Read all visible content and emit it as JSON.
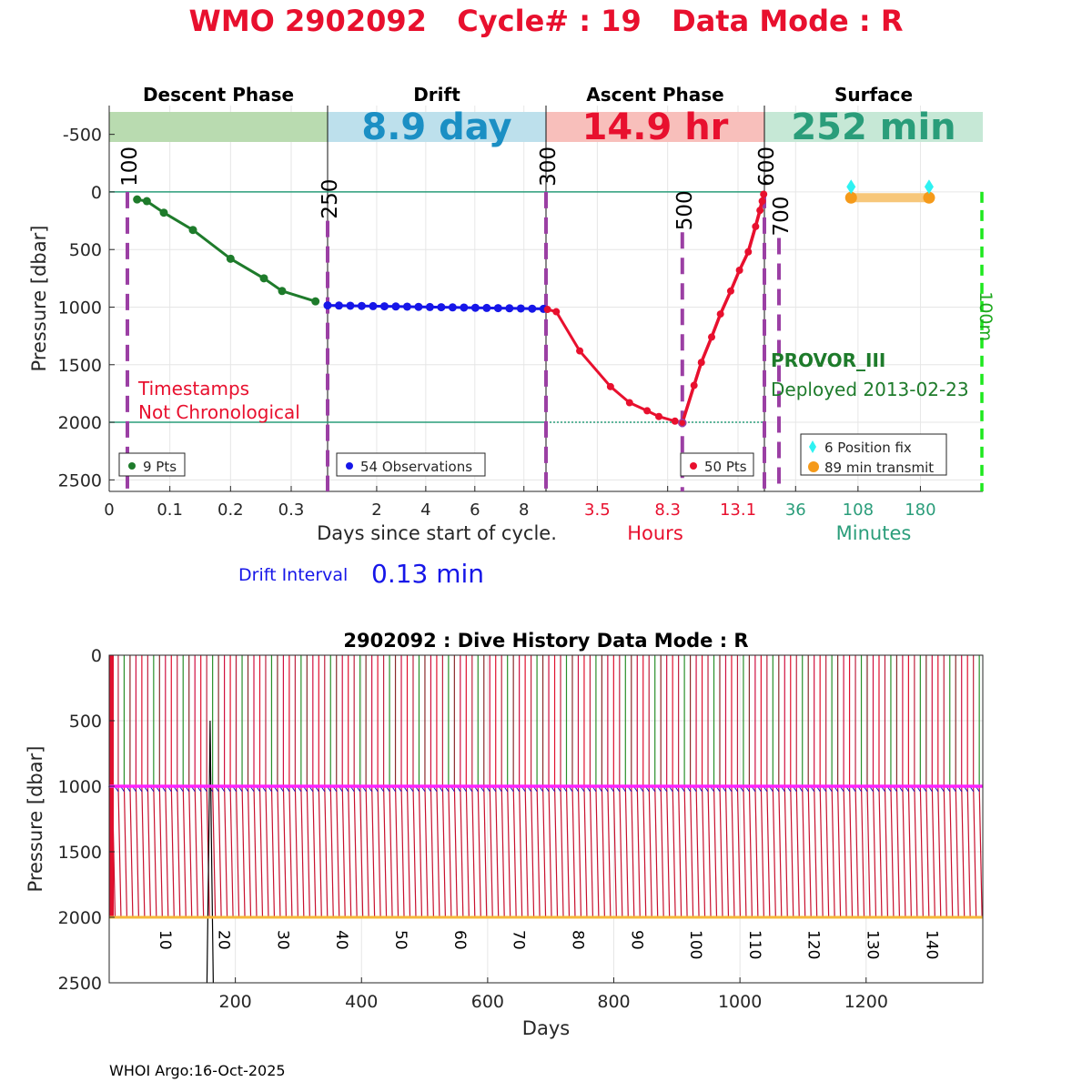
{
  "header": {
    "title": "WMO 2902092   Cycle# : 19   Data Mode : R"
  },
  "colors": {
    "title_red": "#e8102e",
    "descent": "#1e7b2b",
    "drift": "#1616e8",
    "ascent": "#e8102e",
    "surface_teal": "#2a9d7a",
    "marker_purple": "#9b3fa4",
    "orange": "#f59a1a",
    "cyan": "#2ef2f2"
  },
  "chart_data": [
    {
      "type": "line",
      "name": "cycle-profile",
      "phases": [
        {
          "title": "Descent Phase",
          "band_text": "",
          "band_color": "#b9dbb0"
        },
        {
          "title": "Drift",
          "band_text": "8.9 day",
          "band_color": "#bde0ec",
          "text_color": "#1b8fc4"
        },
        {
          "title": "Ascent Phase",
          "band_text": "14.9 hr",
          "band_color": "#f8bfbb",
          "text_color": "#e8102e"
        },
        {
          "title": "Surface",
          "band_text": "252 min",
          "band_color": "#c6e8d6",
          "text_color": "#2a9d7a"
        }
      ],
      "ylabel": "Pressure [dbar]",
      "yticks": [
        "-500",
        "0",
        "500",
        "1000",
        "1500",
        "2000",
        "2500"
      ],
      "ylim": [
        -750,
        2600
      ],
      "y_reversed": true,
      "xlabels": {
        "descent_drift": "Days since start of cycle.",
        "ascent": "Hours",
        "surface": "Minutes"
      },
      "xticks": {
        "descent": [
          "0",
          "0.1",
          "0.2",
          "0.3"
        ],
        "drift": [
          "2",
          "4",
          "6",
          "8"
        ],
        "ascent": [
          "3.5",
          "8.3",
          "13.1"
        ],
        "surface": [
          "36",
          "108",
          "180"
        ]
      },
      "descent": {
        "xlim": [
          0,
          0.36
        ],
        "points": [
          [
            0.046,
            65
          ],
          [
            0.062,
            80
          ],
          [
            0.09,
            180
          ],
          [
            0.138,
            330
          ],
          [
            0.2,
            580
          ],
          [
            0.255,
            750
          ],
          [
            0.285,
            860
          ],
          [
            0.34,
            950
          ]
        ]
      },
      "drift": {
        "xlim": [
          0,
          8.9
        ],
        "start": 0,
        "end": 8.8,
        "count": 20,
        "pressure_start": 985,
        "pressure_end": 1015
      },
      "ascent": {
        "xlim": [
          0,
          14.9
        ],
        "descent_leg": [
          [
            0.1,
            1020
          ],
          [
            0.7,
            1040
          ],
          [
            2.3,
            1380
          ],
          [
            4.4,
            1690
          ],
          [
            5.7,
            1830
          ],
          [
            6.9,
            1900
          ],
          [
            7.7,
            1950
          ],
          [
            8.8,
            1990
          ],
          [
            9.3,
            2005
          ]
        ],
        "ascent_leg": [
          [
            9.3,
            2005
          ],
          [
            10.1,
            1680
          ],
          [
            10.6,
            1480
          ],
          [
            11.3,
            1260
          ],
          [
            11.9,
            1060
          ],
          [
            12.6,
            860
          ],
          [
            13.2,
            680
          ],
          [
            13.8,
            520
          ],
          [
            14.3,
            300
          ],
          [
            14.6,
            160
          ],
          [
            14.75,
            80
          ],
          [
            14.85,
            20
          ]
        ]
      },
      "surface": {
        "xlim": [
          0,
          252
        ],
        "position_fix_minutes": [
          100,
          190
        ],
        "transmit_start": 100,
        "transmit_end": 190,
        "green_line_label": "100m"
      },
      "reference_lines": [
        0,
        2000
      ],
      "markers": [
        {
          "label": "100",
          "panel": "descent",
          "x": 0.03,
          "top": 0
        },
        {
          "label": "250",
          "panel": "drift",
          "x": 0,
          "top": 250
        },
        {
          "label": "300",
          "panel": "ascent",
          "x": 0,
          "top": 0
        },
        {
          "label": "500",
          "panel": "ascent",
          "x": 9.3,
          "top": 350
        },
        {
          "label": "600",
          "panel": "ascent",
          "x": 14.9,
          "top": 0
        },
        {
          "label": "700",
          "panel": "surface",
          "x": 12,
          "top": 400
        }
      ],
      "legends": {
        "descent": "9 Pts",
        "drift": "54 Observations",
        "ascent": "50 Pts",
        "surface_fix": "6 Position fix",
        "surface_transmit": "89 min transmit"
      },
      "annotations": {
        "timestamps": [
          "Timestamps",
          "Not Chronological"
        ],
        "float_type": "PROVOR_III",
        "deployed": "Deployed 2013-02-23",
        "drift_interval_label": "Drift Interval",
        "drift_interval_value": "0.13 min"
      }
    },
    {
      "type": "line",
      "name": "dive-history",
      "title": "2902092 : Dive History      Data Mode : R",
      "xlabel": "Days",
      "ylabel": "Pressure [dbar]",
      "xlim": [
        0,
        1385
      ],
      "ylim": [
        0,
        2500
      ],
      "xticks": [
        200,
        400,
        600,
        800,
        1000,
        1200
      ],
      "yticks": [
        0,
        500,
        1000,
        1500,
        2000,
        2500
      ],
      "cycles": 148,
      "cycle_spacing_days": 9.35,
      "park_pressure": 1000,
      "profile_pressure": 2000,
      "cycle_labels": [
        "10",
        "20",
        "30",
        "40",
        "50",
        "60",
        "70",
        "80",
        "90",
        "100",
        "110",
        "120",
        "130",
        "140"
      ]
    }
  ],
  "footer": {
    "credit": "WHOI Argo:16-Oct-2025"
  }
}
